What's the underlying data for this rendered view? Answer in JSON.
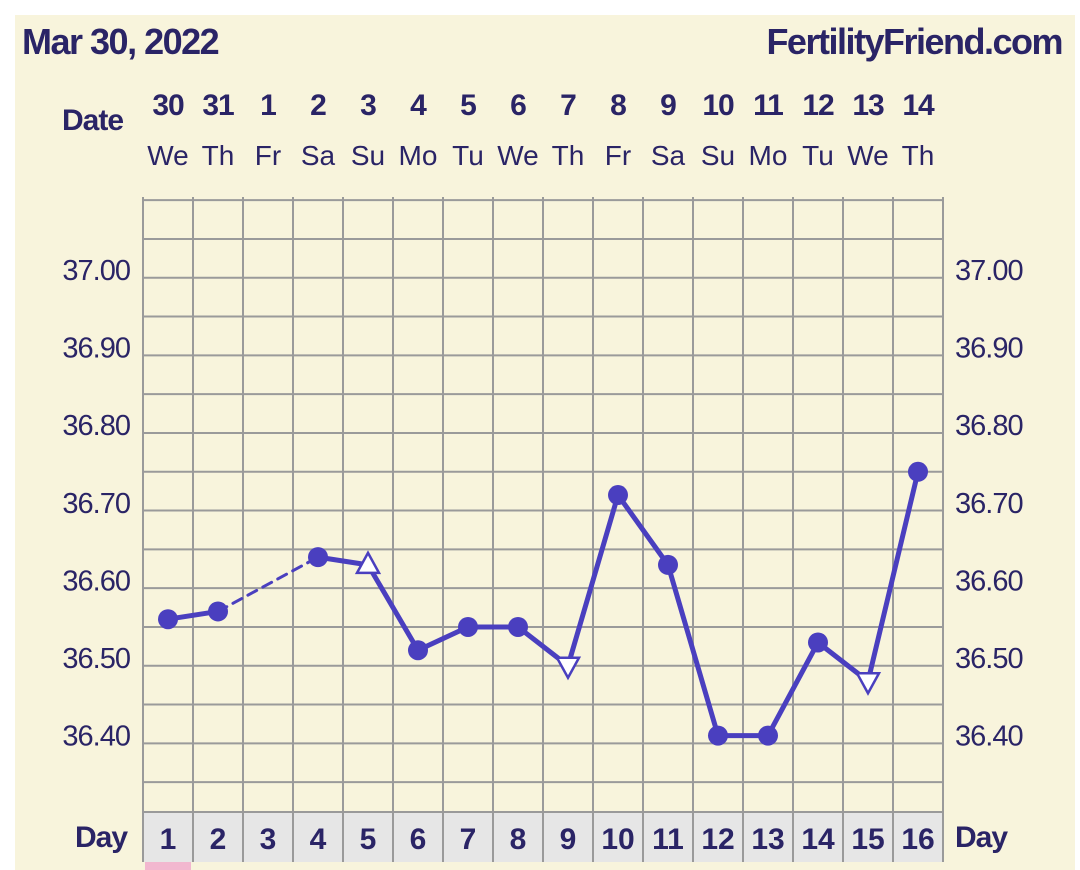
{
  "header": {
    "date": "Mar 30, 2022",
    "site": "FertilityFriend.com"
  },
  "chart_data": {
    "type": "line",
    "row_labels": {
      "date": "Date",
      "day": "Day"
    },
    "dates": [
      "30",
      "31",
      "1",
      "2",
      "3",
      "4",
      "5",
      "6",
      "7",
      "8",
      "9",
      "10",
      "11",
      "12",
      "13",
      "14"
    ],
    "weekdays": [
      "We",
      "Th",
      "Fr",
      "Sa",
      "Su",
      "Mo",
      "Tu",
      "We",
      "Th",
      "Fr",
      "Sa",
      "Su",
      "Mo",
      "Tu",
      "We",
      "Th"
    ],
    "days": [
      "1",
      "2",
      "3",
      "4",
      "5",
      "6",
      "7",
      "8",
      "9",
      "10",
      "11",
      "12",
      "13",
      "14",
      "15",
      "16"
    ],
    "y_ticks": [
      "37.00",
      "36.90",
      "36.80",
      "36.70",
      "36.60",
      "36.50",
      "36.40"
    ],
    "ylim": [
      36.31,
      37.09
    ],
    "grid": true,
    "series": [
      {
        "values": [
          36.55,
          36.56,
          null,
          36.63,
          36.62,
          36.51,
          36.54,
          36.54,
          36.49,
          36.71,
          36.62,
          36.4,
          36.4,
          36.52,
          36.47,
          36.74
        ],
        "markers": [
          "circle",
          "circle",
          "none",
          "circle",
          "triangle-up",
          "circle",
          "circle",
          "circle",
          "triangle-down",
          "circle",
          "circle",
          "circle",
          "circle",
          "circle",
          "triangle-down",
          "circle"
        ]
      }
    ],
    "colors": {
      "line": "#4a3fbf",
      "text": "#2a2466",
      "grid": "#9a9a9a",
      "background": "#f8f4dc",
      "day_cell": "#e6e6e6",
      "marker_hollow": "#ffffff",
      "pink_marker": "#f2b7cf"
    }
  }
}
